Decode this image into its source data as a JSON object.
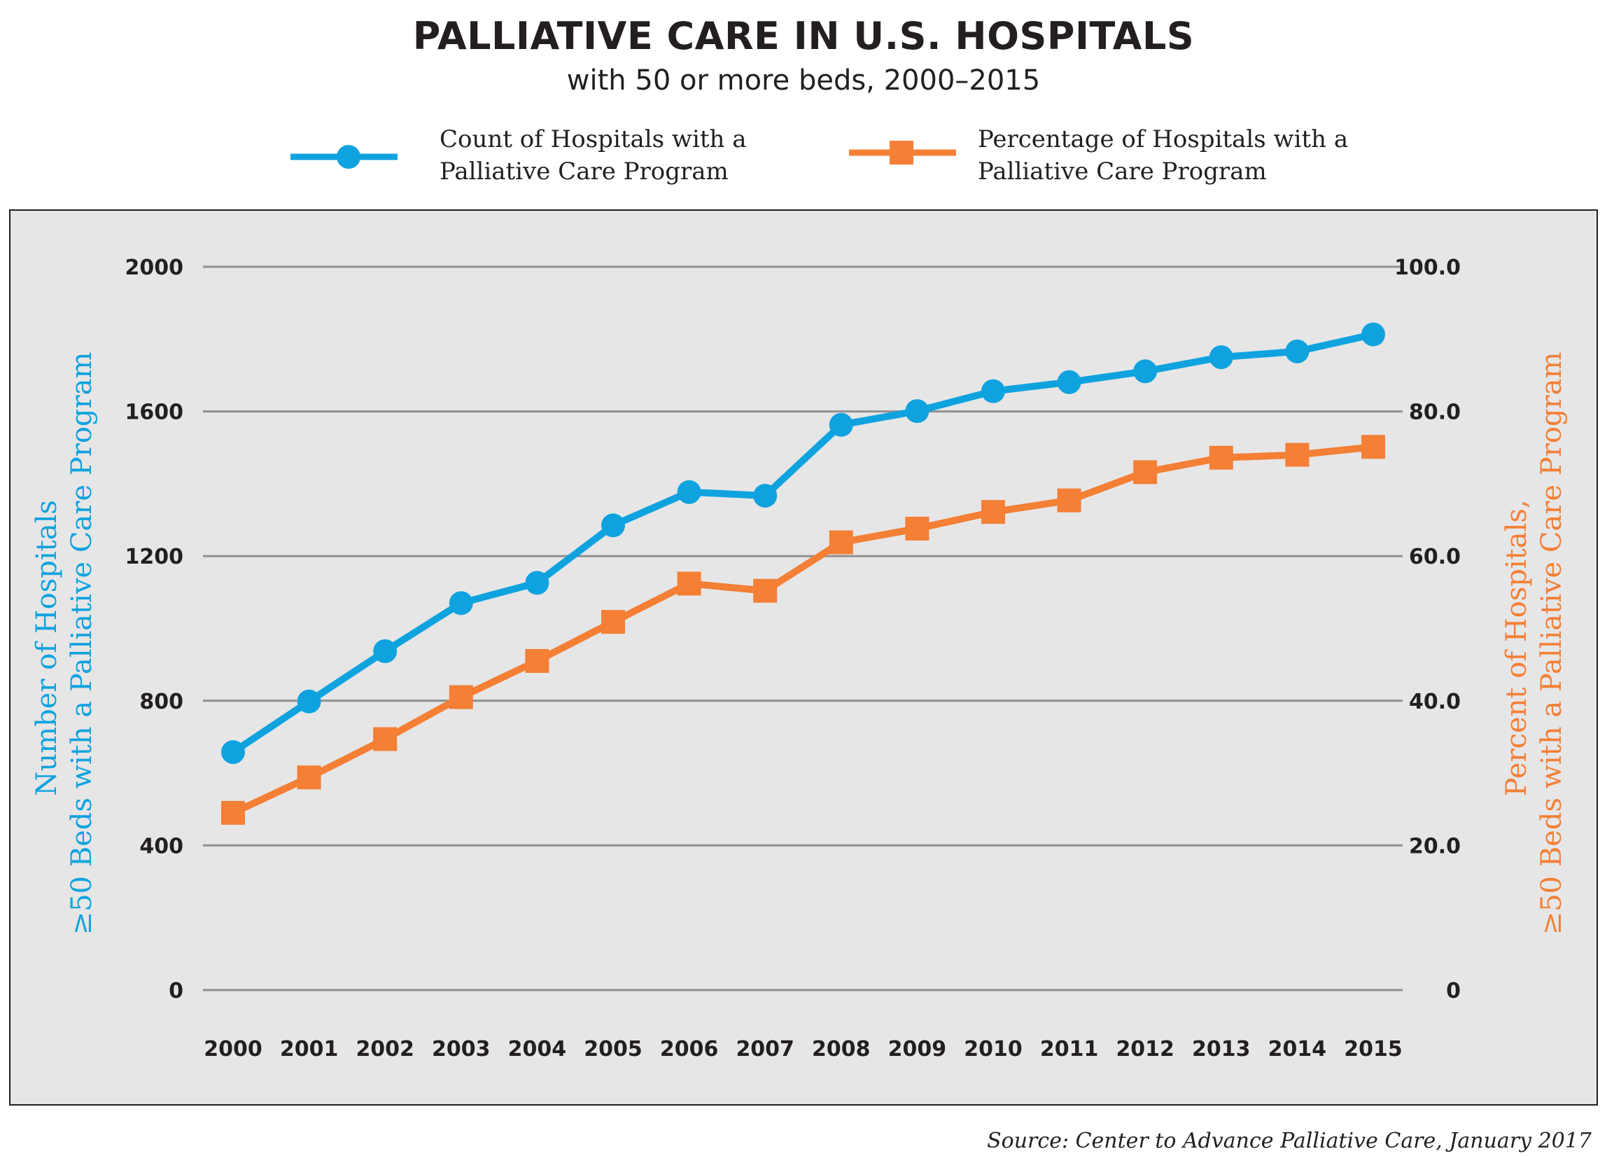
{
  "chart_data": {
    "type": "line",
    "title": "PALLIATIVE CARE IN U.S. HOSPITALS",
    "subtitle": "with 50 or more beds, 2000–2015",
    "categories": [
      "2000",
      "2001",
      "2002",
      "2003",
      "2004",
      "2005",
      "2006",
      "2007",
      "2008",
      "2009",
      "2010",
      "2011",
      "2012",
      "2013",
      "2014",
      "2015"
    ],
    "series": [
      {
        "name": "Count of Hospitals with a Palliative Care Program",
        "name_lines": [
          "Count of Hospitals with a",
          "Palliative Care Program"
        ],
        "axis": "left",
        "color": "#0ea3df",
        "marker": "circle",
        "values": [
          658,
          798,
          937,
          1070,
          1126,
          1285,
          1377,
          1367,
          1563,
          1601,
          1656,
          1681,
          1711,
          1750,
          1766,
          1813
        ]
      },
      {
        "name": "Percentage of Hospitals with a Palliative Care Program",
        "name_lines": [
          "Percentage of Hospitals with a",
          "Palliative Care Program"
        ],
        "axis": "right",
        "color": "#f47f35",
        "marker": "square",
        "values": [
          24.5,
          29.4,
          34.7,
          40.5,
          45.5,
          50.9,
          56.2,
          55.2,
          61.9,
          63.8,
          66.1,
          67.7,
          71.6,
          73.6,
          74.0,
          75.1
        ]
      }
    ],
    "ylabel_left_lines": [
      "Number of Hospitals",
      "≥50  Beds with a Palliative Care Program"
    ],
    "ylabel_right_lines": [
      "Percent of Hospitals,",
      "≥50  Beds with a Palliative Care Program"
    ],
    "ylim_left": [
      0,
      2000
    ],
    "yticks_left": [
      "0",
      "400",
      "800",
      "1200",
      "1600",
      "2000"
    ],
    "ylim_right": [
      0,
      100
    ],
    "yticks_right": [
      "0",
      "20.0",
      "40.0",
      "60.0",
      "80.0",
      "100.0"
    ],
    "grid": true,
    "legend_position": "top",
    "background": "#e6e6e7",
    "source": "Source: Center to Advance Palliative Care, January 2017"
  }
}
